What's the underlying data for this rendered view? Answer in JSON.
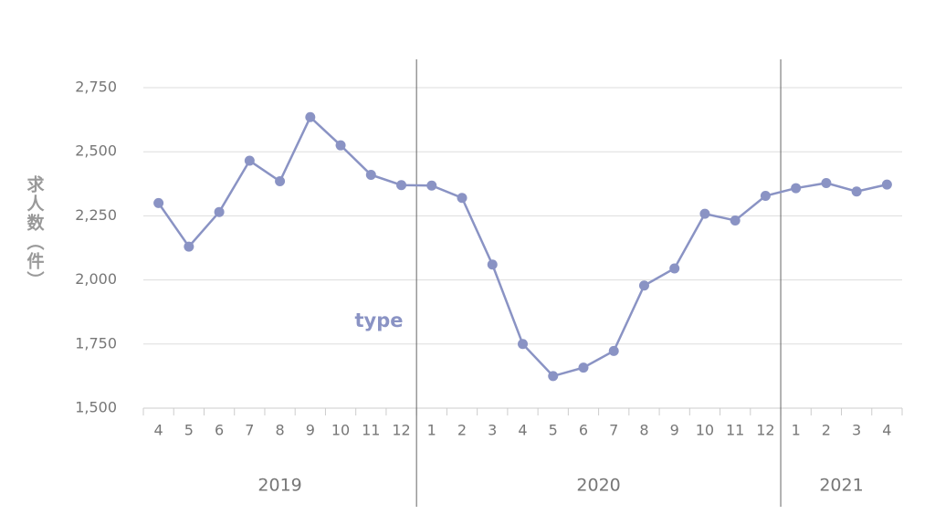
{
  "chart_data": {
    "type": "line",
    "y_label": "求人数（件）",
    "categories": [
      "4",
      "5",
      "6",
      "7",
      "8",
      "9",
      "10",
      "11",
      "12",
      "1",
      "2",
      "3",
      "4",
      "5",
      "6",
      "7",
      "8",
      "9",
      "10",
      "11",
      "12",
      "1",
      "2",
      "3",
      "4"
    ],
    "year_groups": [
      {
        "label": "2019",
        "size": 9
      },
      {
        "label": "2020",
        "size": 12
      },
      {
        "label": "2021",
        "size": 4
      }
    ],
    "series": [
      {
        "name": "type",
        "color": "#8a93c4",
        "values": [
          2300,
          2130,
          2265,
          2465,
          2385,
          2635,
          2525,
          2410,
          2370,
          2368,
          2320,
          2060,
          1750,
          1625,
          1658,
          1723,
          1978,
          2045,
          2258,
          2232,
          2328,
          2358,
          2378,
          2345,
          2372
        ]
      }
    ],
    "ylim": [
      1500,
      2750
    ],
    "yticks": [
      {
        "value": 1500,
        "label": "1,500"
      },
      {
        "value": 1750,
        "label": "1,750"
      },
      {
        "value": 2000,
        "label": "2,000"
      },
      {
        "value": 2250,
        "label": "2,250"
      },
      {
        "value": 2500,
        "label": "2,500"
      },
      {
        "value": 2750,
        "label": "2,750"
      }
    ],
    "grid": true
  }
}
